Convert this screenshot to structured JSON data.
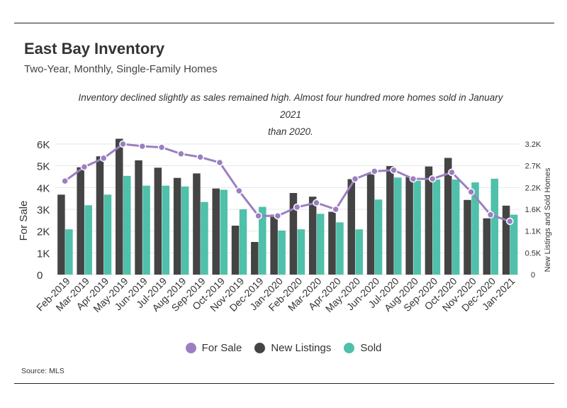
{
  "header": {
    "title": "East Bay Inventory",
    "subtitle": "Two-Year, Monthly, Single-Family Homes",
    "annotation_line1": "Inventory declined slightly as sales remained high. Almost four hundred more homes sold in January 2021",
    "annotation_line2": "than 2020."
  },
  "footer": {
    "source": "Source:  MLS"
  },
  "legend": [
    {
      "label": "For Sale",
      "color": "#9b7fc0"
    },
    {
      "label": "New Listings",
      "color": "#444444"
    },
    {
      "label": "Sold",
      "color": "#4fc0a9"
    }
  ],
  "chart_data": {
    "type": "bar",
    "categories": [
      "Feb-2019",
      "Mar-2019",
      "Apr-2019",
      "May-2019",
      "Jun-2019",
      "Jul-2019",
      "Aug-2019",
      "Sep-2019",
      "Oct-2019",
      "Nov-2019",
      "Dec-2019",
      "Jan-2020",
      "Feb-2020",
      "Mar-2020",
      "Apr-2020",
      "May-2020",
      "Jun-2020",
      "Jul-2020",
      "Aug-2020",
      "Sep-2020",
      "Oct-2020",
      "Nov-2020",
      "Dec-2020",
      "Jan-2021"
    ],
    "ylabel": "For Sale",
    "y2label": "New Listings and Sold Homes",
    "ylim": [
      0,
      6000
    ],
    "y2lim": [
      0,
      3200
    ],
    "yticks": [
      "0",
      "1K",
      "2K",
      "3K",
      "4K",
      "5K",
      "6K"
    ],
    "y2ticks": [
      "0",
      "0.5K",
      "1.1K",
      "1.6K",
      "2.2K",
      "2.7K",
      "3.2K"
    ],
    "grid": true,
    "legend_position": "bottom",
    "series": [
      {
        "name": "New Listings",
        "axis": "right",
        "type": "bar",
        "color": "#444444",
        "values": [
          1960,
          2630,
          2900,
          3330,
          2800,
          2620,
          2370,
          2480,
          2110,
          1200,
          800,
          1470,
          2000,
          1910,
          1540,
          2340,
          2460,
          2660,
          2390,
          2650,
          2860,
          1830,
          1380,
          1690
        ]
      },
      {
        "name": "Sold",
        "axis": "right",
        "type": "bar",
        "color": "#4fc0a9",
        "values": [
          1110,
          1700,
          1960,
          2420,
          2180,
          2180,
          2160,
          1780,
          2080,
          1600,
          1660,
          1080,
          1110,
          1490,
          1280,
          1110,
          1840,
          2380,
          2300,
          2330,
          2330,
          2260,
          2350,
          1470
        ]
      },
      {
        "name": "For Sale",
        "axis": "left",
        "type": "line",
        "color": "#9b7fc0",
        "values": [
          4300,
          4950,
          5350,
          6000,
          5900,
          5850,
          5550,
          5400,
          5150,
          3850,
          2700,
          2700,
          3100,
          3300,
          3000,
          4400,
          4750,
          4800,
          4400,
          4400,
          4700,
          3800,
          2750,
          2450
        ]
      }
    ]
  }
}
